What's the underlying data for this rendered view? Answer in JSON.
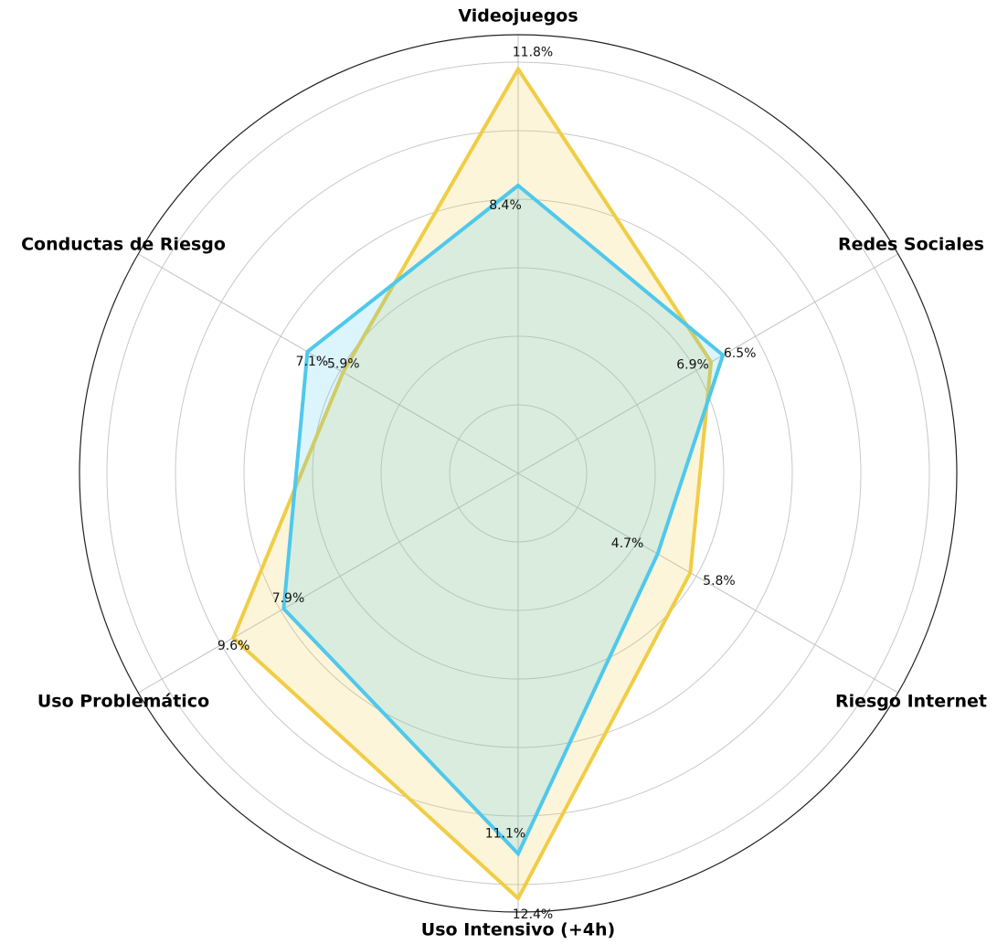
{
  "chart_data": {
    "type": "radar",
    "categories": [
      "Videojuegos",
      "Redes Sociales",
      "Riesgo Internet",
      "Uso Intensivo (+4h)",
      "Uso Problemático",
      "Conductas de Riesgo"
    ],
    "series": [
      {
        "color": "#f0cd45",
        "values": [
          11.8,
          6.5,
          5.8,
          12.4,
          9.6,
          5.9
        ],
        "value_labels": [
          "11.8%",
          "6.5%",
          "5.8%",
          "12.4%",
          "9.6%",
          "5.9%"
        ]
      },
      {
        "color": "#4fc8ec",
        "values": [
          8.4,
          6.9,
          4.7,
          11.1,
          7.9,
          7.1
        ],
        "value_labels": [
          "8.4%",
          "6.9%",
          "4.7%",
          "11.1%",
          "7.9%",
          "7.1%"
        ]
      }
    ],
    "rlim": [
      0,
      12.8
    ],
    "rticks": [
      2,
      4,
      6,
      8,
      10,
      12
    ],
    "grid": true
  }
}
